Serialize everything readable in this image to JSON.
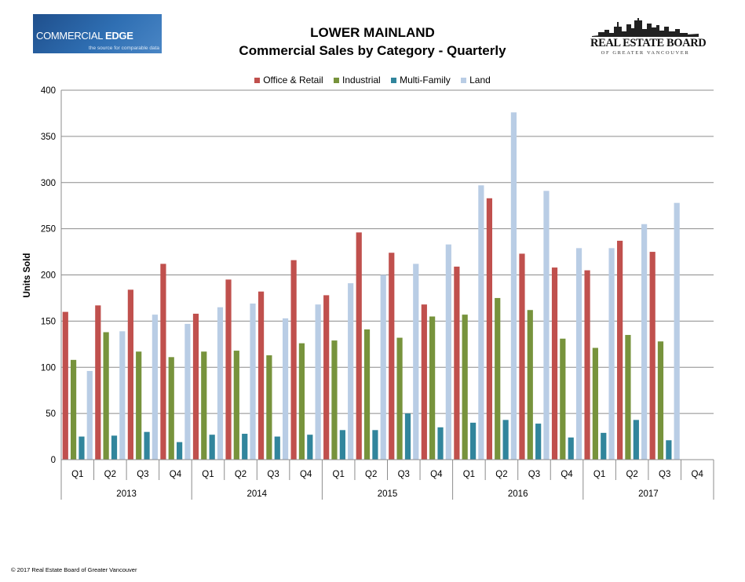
{
  "header": {
    "left_logo": {
      "brand_light": "COMMERCIAL ",
      "brand_bold": "EDGE",
      "tagline": "the source for comparable data"
    },
    "title_line1": "LOWER MAINLAND",
    "title_line2": "Commercial Sales by Category - Quarterly",
    "right_logo": {
      "name": "REAL ESTATE BOARD",
      "sub": "OF GREATER VANCOUVER"
    }
  },
  "footer": {
    "copyright": "© 2017 Real Estate Board of Greater Vancouver"
  },
  "colors": {
    "office_retail": "#c0504d",
    "industrial": "#77933c",
    "multi_family": "#31859c",
    "land": "#b9cde5"
  },
  "chart_data": {
    "type": "bar",
    "title": "",
    "xlabel": "",
    "ylabel": "Units Sold",
    "ylim": [
      0,
      400
    ],
    "yticks": [
      0,
      50,
      100,
      150,
      200,
      250,
      300,
      350,
      400
    ],
    "grid": true,
    "legend_position": "top",
    "years": [
      "2013",
      "2014",
      "2015",
      "2016",
      "2017"
    ],
    "categories": [
      "Q1",
      "Q2",
      "Q3",
      "Q4",
      "Q1",
      "Q2",
      "Q3",
      "Q4",
      "Q1",
      "Q2",
      "Q3",
      "Q4",
      "Q1",
      "Q2",
      "Q3",
      "Q4",
      "Q1",
      "Q2",
      "Q3",
      "Q4"
    ],
    "series": [
      {
        "name": "Office & Retail",
        "values": [
          160,
          167,
          184,
          212,
          158,
          195,
          182,
          216,
          178,
          246,
          224,
          168,
          209,
          283,
          223,
          208,
          205,
          237,
          225,
          null
        ]
      },
      {
        "name": "Industrial",
        "values": [
          108,
          138,
          117,
          111,
          117,
          118,
          113,
          126,
          129,
          141,
          132,
          155,
          157,
          175,
          162,
          131,
          121,
          135,
          128,
          null
        ]
      },
      {
        "name": "Multi-Family",
        "values": [
          25,
          26,
          30,
          19,
          27,
          28,
          25,
          27,
          32,
          32,
          50,
          35,
          40,
          43,
          39,
          24,
          29,
          43,
          21,
          null
        ]
      },
      {
        "name": "Land",
        "values": [
          96,
          139,
          157,
          147,
          165,
          169,
          153,
          168,
          191,
          200,
          212,
          233,
          297,
          376,
          291,
          229,
          229,
          255,
          278,
          null
        ]
      }
    ]
  }
}
